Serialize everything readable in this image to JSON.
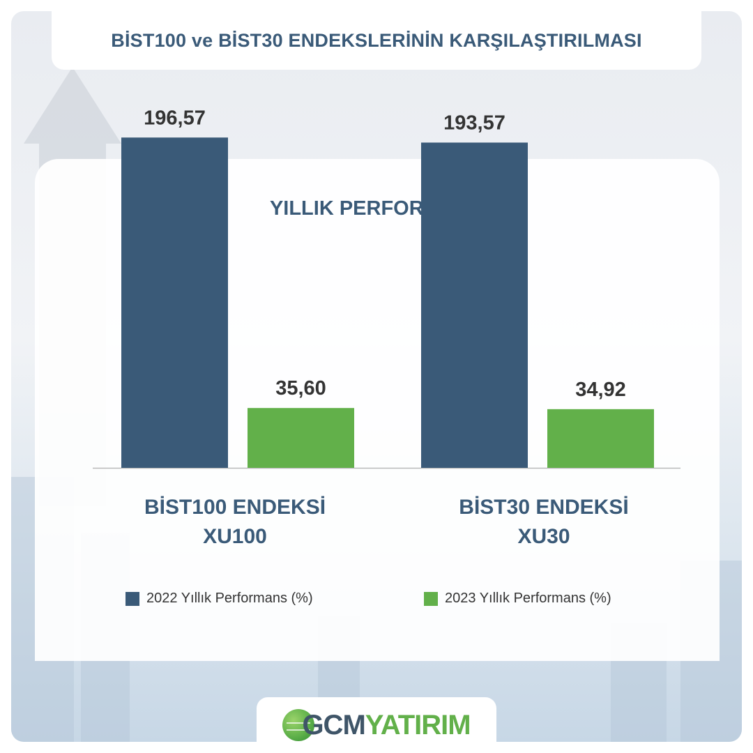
{
  "header": {
    "title": "BİST100 ve BİST30 ENDEKSLERİNİN KARŞILAŞTIRILMASI"
  },
  "chart_data": {
    "type": "bar",
    "title": "YILLIK PERFORMANS",
    "categories": [
      "BİST100 ENDEKSİ\nXU100",
      "BİST30 ENDEKSİ\nXU30"
    ],
    "category_lines": [
      [
        "BİST100 ENDEKSİ",
        "XU100"
      ],
      [
        "BİST30 ENDEKSİ",
        "XU30"
      ]
    ],
    "series": [
      {
        "name": "2022 Yıllık Performans (%)",
        "color": "#3a5a78",
        "values": [
          196.57,
          193.57
        ],
        "labels": [
          "196,57",
          "193,57"
        ]
      },
      {
        "name": "2023 Yıllık Performans (%)",
        "color": "#62b04a",
        "values": [
          35.6,
          34.92
        ],
        "labels": [
          "35,60",
          "34,92"
        ]
      }
    ],
    "ylim": [
      0,
      200
    ],
    "grid": false,
    "legend": "bottom",
    "xlabel": "",
    "ylabel": ""
  },
  "brand": {
    "part1": "GCM",
    "part2": "YATIRIM",
    "icon": "globe-icon"
  }
}
